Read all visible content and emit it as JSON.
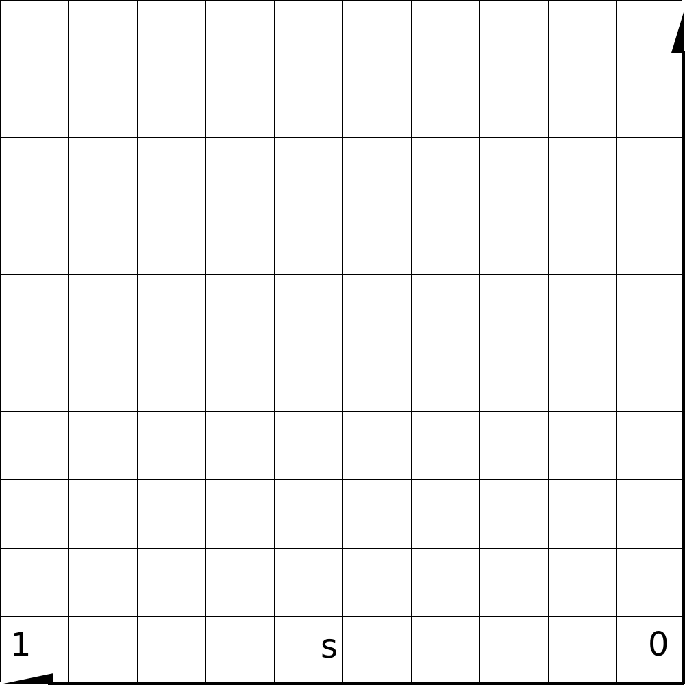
{
  "diagram": {
    "grid": {
      "columns": 10,
      "rows": 10
    },
    "colors": {
      "background": "#ffffff",
      "line": "#000000",
      "text": "#000000"
    },
    "labels": {
      "left": "1",
      "middle": "s",
      "right": "0"
    }
  }
}
